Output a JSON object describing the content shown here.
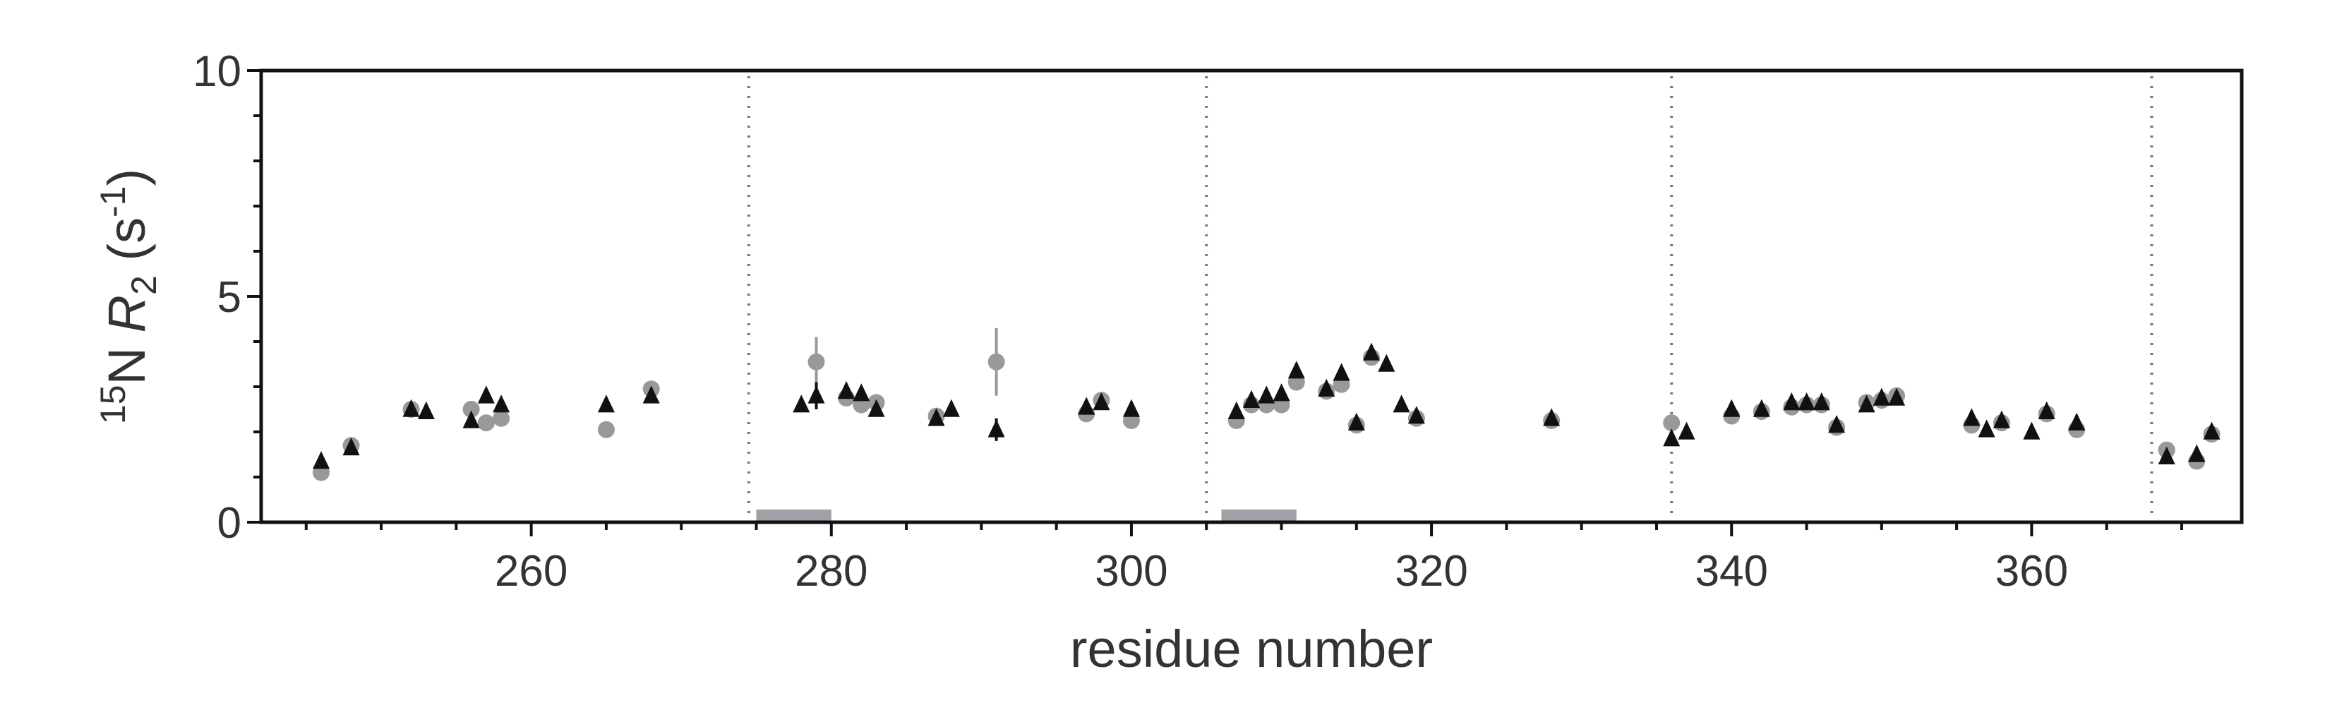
{
  "chart_data": {
    "type": "scatter",
    "xlabel": "residue number",
    "ylabel": {
      "prefix_sup": "15",
      "prefix": "N ",
      "symbol": "R",
      "symbol_sub": "2",
      "unit_open": " (s",
      "unit_sup": "-1",
      "unit_close": ")"
    },
    "xlim": [
      242,
      374
    ],
    "ylim": [
      0,
      10
    ],
    "xticks": [
      260,
      280,
      300,
      320,
      340,
      360
    ],
    "yticks": [
      0,
      5,
      10
    ],
    "grid": false,
    "legend": "none",
    "dividers_x": [
      274.5,
      305,
      336,
      368
    ],
    "bars": [
      {
        "x_start": 275,
        "x_end": 280,
        "y": 0.25
      },
      {
        "x_start": 306,
        "x_end": 311,
        "y": 0.25
      }
    ],
    "colors": {
      "triangle": "#111111",
      "circle": "#999999",
      "bar": "#a0a0a6",
      "axis": "#111111"
    },
    "series": [
      {
        "marker": "triangle",
        "color": "#111111",
        "points": [
          [
            246,
            1.35,
            0
          ],
          [
            248,
            1.65,
            0
          ],
          [
            252,
            2.5,
            0
          ],
          [
            253,
            2.45,
            0
          ],
          [
            256,
            2.25,
            0
          ],
          [
            257,
            2.8,
            0
          ],
          [
            258,
            2.6,
            0
          ],
          [
            265,
            2.6,
            0
          ],
          [
            268,
            2.8,
            0
          ],
          [
            278,
            2.6,
            0
          ],
          [
            279,
            2.8,
            0.3
          ],
          [
            281,
            2.9,
            0
          ],
          [
            282,
            2.85,
            0
          ],
          [
            283,
            2.5,
            0
          ],
          [
            287,
            2.3,
            0
          ],
          [
            288,
            2.5,
            0
          ],
          [
            291,
            2.05,
            0.25
          ],
          [
            297,
            2.55,
            0
          ],
          [
            298,
            2.65,
            0
          ],
          [
            300,
            2.5,
            0
          ],
          [
            307,
            2.45,
            0
          ],
          [
            308,
            2.7,
            0
          ],
          [
            309,
            2.8,
            0
          ],
          [
            310,
            2.85,
            0
          ],
          [
            311,
            3.35,
            0
          ],
          [
            313,
            2.95,
            0
          ],
          [
            314,
            3.3,
            0
          ],
          [
            315,
            2.2,
            0
          ],
          [
            316,
            3.75,
            0
          ],
          [
            317,
            3.5,
            0
          ],
          [
            318,
            2.6,
            0
          ],
          [
            319,
            2.35,
            0
          ],
          [
            328,
            2.3,
            0
          ],
          [
            336,
            1.85,
            0
          ],
          [
            337,
            2.0,
            0
          ],
          [
            340,
            2.5,
            0
          ],
          [
            342,
            2.5,
            0
          ],
          [
            344,
            2.65,
            0
          ],
          [
            345,
            2.65,
            0
          ],
          [
            346,
            2.65,
            0
          ],
          [
            347,
            2.15,
            0
          ],
          [
            349,
            2.6,
            0
          ],
          [
            350,
            2.75,
            0
          ],
          [
            351,
            2.75,
            0
          ],
          [
            356,
            2.3,
            0
          ],
          [
            357,
            2.05,
            0
          ],
          [
            358,
            2.25,
            0
          ],
          [
            360,
            2.0,
            0
          ],
          [
            361,
            2.45,
            0
          ],
          [
            363,
            2.2,
            0
          ],
          [
            369,
            1.45,
            0
          ],
          [
            371,
            1.5,
            0
          ],
          [
            372,
            2.0,
            0
          ]
        ]
      },
      {
        "marker": "circle",
        "color": "#999999",
        "points": [
          [
            246,
            1.1,
            0
          ],
          [
            248,
            1.7,
            0
          ],
          [
            252,
            2.5,
            0
          ],
          [
            256,
            2.5,
            0
          ],
          [
            257,
            2.2,
            0
          ],
          [
            258,
            2.3,
            0
          ],
          [
            265,
            2.05,
            0.15
          ],
          [
            268,
            2.95,
            0
          ],
          [
            279,
            3.55,
            0.55
          ],
          [
            281,
            2.75,
            0
          ],
          [
            282,
            2.6,
            0
          ],
          [
            283,
            2.65,
            0
          ],
          [
            287,
            2.35,
            0
          ],
          [
            291,
            3.55,
            0.75
          ],
          [
            297,
            2.4,
            0
          ],
          [
            298,
            2.7,
            0
          ],
          [
            300,
            2.25,
            0
          ],
          [
            307,
            2.25,
            0
          ],
          [
            308,
            2.6,
            0
          ],
          [
            309,
            2.6,
            0
          ],
          [
            310,
            2.6,
            0
          ],
          [
            311,
            3.1,
            0
          ],
          [
            313,
            2.9,
            0
          ],
          [
            314,
            3.05,
            0
          ],
          [
            315,
            2.15,
            0
          ],
          [
            316,
            3.65,
            0
          ],
          [
            319,
            2.3,
            0
          ],
          [
            328,
            2.25,
            0
          ],
          [
            336,
            2.2,
            0
          ],
          [
            340,
            2.35,
            0
          ],
          [
            342,
            2.45,
            0
          ],
          [
            344,
            2.55,
            0
          ],
          [
            345,
            2.6,
            0
          ],
          [
            346,
            2.6,
            0
          ],
          [
            347,
            2.1,
            0
          ],
          [
            349,
            2.65,
            0
          ],
          [
            350,
            2.7,
            0
          ],
          [
            351,
            2.8,
            0
          ],
          [
            356,
            2.15,
            0
          ],
          [
            358,
            2.2,
            0
          ],
          [
            361,
            2.4,
            0
          ],
          [
            363,
            2.05,
            0
          ],
          [
            369,
            1.6,
            0
          ],
          [
            371,
            1.35,
            0
          ],
          [
            372,
            1.95,
            0
          ]
        ]
      }
    ]
  }
}
